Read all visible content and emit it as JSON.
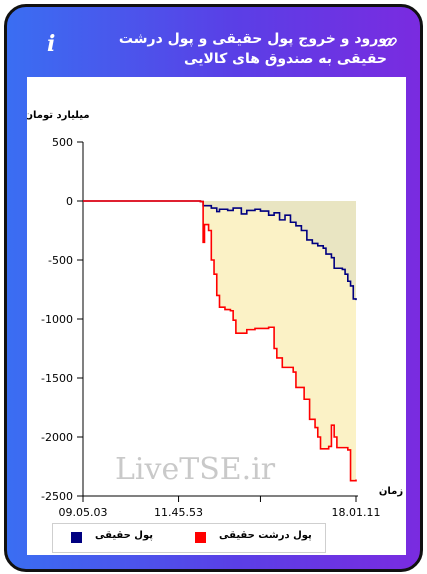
{
  "header": {
    "title": "ورود و خروج پول حقیقی و پول درشت حقیقی به صندوق های کالایی",
    "info_icon": "info-icon",
    "link_icon": "link-icon",
    "info_glyph": "i"
  },
  "watermark": "LiveTSE.ir",
  "colors": {
    "real_money": "#000080",
    "big_real_money": "#ff0000",
    "fill_real": "#e9e5c2",
    "fill_big": "#fbf2c6",
    "card_gradient": [
      "#3a6ef2",
      "#7a2be0"
    ]
  },
  "chart_data": {
    "type": "line",
    "ylabel": "میلیارد تومان",
    "xlabel": "زمان",
    "ylim": [
      -2500,
      500
    ],
    "yticks": [
      500,
      0,
      -500,
      -1000,
      -1500,
      -2000,
      -2500
    ],
    "ytick_labels": [
      "500",
      "0",
      "-500",
      "-1000",
      "-1500",
      "-2000",
      "-2500"
    ],
    "xlim": [
      0,
      1
    ],
    "xtick_positions": [
      0,
      0.35,
      0.65,
      1
    ],
    "xtick_labels": [
      "09.05.03",
      "11.45.53",
      "",
      "18.01.11"
    ],
    "grid": false,
    "legend_position": "bottom",
    "series": [
      {
        "name": "پول حقیقی",
        "color": "#000080",
        "points": [
          [
            0.0,
            0
          ],
          [
            0.43,
            -5
          ],
          [
            0.44,
            -40
          ],
          [
            0.47,
            -60
          ],
          [
            0.49,
            -90
          ],
          [
            0.5,
            -70
          ],
          [
            0.53,
            -80
          ],
          [
            0.55,
            -60
          ],
          [
            0.58,
            -110
          ],
          [
            0.6,
            -80
          ],
          [
            0.63,
            -70
          ],
          [
            0.65,
            -85
          ],
          [
            0.68,
            -120
          ],
          [
            0.7,
            -100
          ],
          [
            0.72,
            -160
          ],
          [
            0.74,
            -120
          ],
          [
            0.76,
            -180
          ],
          [
            0.78,
            -210
          ],
          [
            0.8,
            -250
          ],
          [
            0.82,
            -330
          ],
          [
            0.84,
            -360
          ],
          [
            0.86,
            -380
          ],
          [
            0.88,
            -400
          ],
          [
            0.89,
            -450
          ],
          [
            0.91,
            -480
          ],
          [
            0.92,
            -570
          ],
          [
            0.95,
            -580
          ],
          [
            0.96,
            -620
          ],
          [
            0.97,
            -680
          ],
          [
            0.98,
            -720
          ],
          [
            0.99,
            -830
          ],
          [
            1.0,
            -840
          ]
        ]
      },
      {
        "name": "پول درشت حقیقی",
        "color": "#ff0000",
        "points": [
          [
            0.0,
            0
          ],
          [
            0.43,
            -5
          ],
          [
            0.44,
            -350
          ],
          [
            0.445,
            -200
          ],
          [
            0.46,
            -250
          ],
          [
            0.47,
            -500
          ],
          [
            0.48,
            -620
          ],
          [
            0.49,
            -800
          ],
          [
            0.5,
            -900
          ],
          [
            0.52,
            -920
          ],
          [
            0.54,
            -930
          ],
          [
            0.55,
            -1010
          ],
          [
            0.56,
            -1120
          ],
          [
            0.6,
            -1090
          ],
          [
            0.63,
            -1080
          ],
          [
            0.68,
            -1070
          ],
          [
            0.7,
            -1250
          ],
          [
            0.71,
            -1330
          ],
          [
            0.73,
            -1410
          ],
          [
            0.77,
            -1450
          ],
          [
            0.78,
            -1580
          ],
          [
            0.81,
            -1680
          ],
          [
            0.83,
            -1850
          ],
          [
            0.85,
            -1920
          ],
          [
            0.86,
            -2000
          ],
          [
            0.87,
            -2100
          ],
          [
            0.9,
            -2080
          ],
          [
            0.91,
            -1900
          ],
          [
            0.92,
            -2000
          ],
          [
            0.93,
            -2090
          ],
          [
            0.97,
            -2110
          ],
          [
            0.98,
            -2370
          ],
          [
            1.0,
            -2360
          ]
        ]
      }
    ]
  }
}
